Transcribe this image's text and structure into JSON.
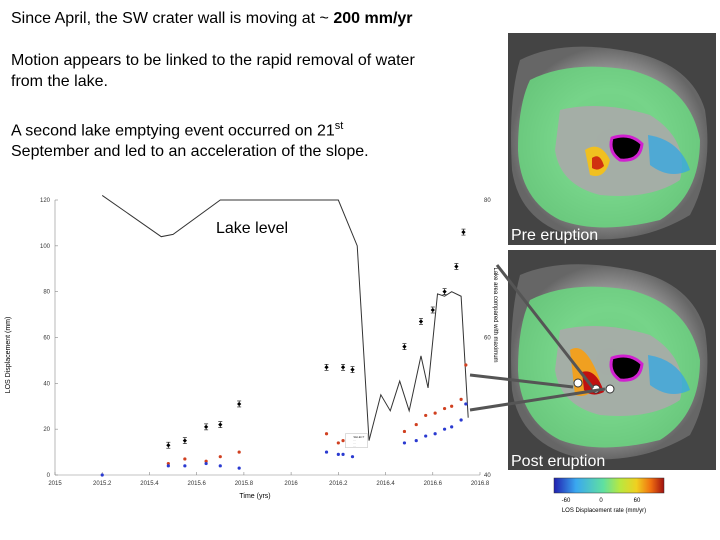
{
  "text": {
    "line1_pre": "Since April, the SW crater wall is moving at ~ ",
    "line1_bold": "200 mm/yr",
    "line2a": "Motion appears to be linked to the rapid removal of water",
    "line2b": "from the lake.",
    "line3a_pre": "A second lake emptying event occurred on 21",
    "line3a_sup": "st",
    "line3b": "September and led to an acceleration of the slope."
  },
  "labels": {
    "lake_level": "Lake level",
    "pre": "Pre eruption",
    "post": "Post eruption"
  },
  "colorbar": {
    "ticks": [
      "-60",
      "0",
      "60"
    ],
    "label": "LOS Displacement rate (mm/yr)"
  },
  "chart_data": {
    "type": "scatter",
    "xlabel": "Time (yrs)",
    "ylabel": "LOS Displacement (mm)",
    "y2label": "Lake area compared with maximum",
    "xlim": [
      2015,
      2016.8
    ],
    "ylim": [
      0,
      120
    ],
    "y2lim": [
      40,
      80
    ],
    "x_ticks": [
      "2015",
      "2015.2",
      "2015.4",
      "2015.6",
      "2015.8",
      "2016",
      "2016.2",
      "2016.4",
      "2016.6",
      "2016.8"
    ],
    "y_ticks": [
      "0",
      "20",
      "40",
      "60",
      "80",
      "100",
      "120"
    ],
    "y2_ticks": [
      "40",
      "60",
      "80"
    ],
    "legend": [
      "SELECT",
      "...",
      "...",
      "..."
    ],
    "series": [
      {
        "color": "#000000",
        "marker": "diamond-errorbar",
        "x": [
          2015.48,
          2015.55,
          2015.64,
          2015.7,
          2015.78,
          2016.15,
          2016.22,
          2016.26,
          2016.48,
          2016.55,
          2016.6,
          2016.65,
          2016.7,
          2016.73
        ],
        "y": [
          13,
          15,
          21,
          22,
          31,
          47,
          47,
          46,
          56,
          67,
          72,
          80,
          91,
          106
        ]
      },
      {
        "color": "#d04020",
        "marker": "dot",
        "x": [
          2015.48,
          2015.55,
          2015.64,
          2015.7,
          2015.78,
          2016.15,
          2016.2,
          2016.22,
          2016.26,
          2016.48,
          2016.53,
          2016.57,
          2016.61,
          2016.65,
          2016.68,
          2016.72,
          2016.74
        ],
        "y": [
          5,
          7,
          6,
          8,
          10,
          18,
          14,
          15,
          15,
          19,
          22,
          26,
          27,
          29,
          30,
          33,
          48
        ]
      },
      {
        "color": "#2a3ad0",
        "marker": "dot",
        "x": [
          2015.2,
          2015.48,
          2015.55,
          2015.64,
          2015.7,
          2015.78,
          2016.15,
          2016.2,
          2016.22,
          2016.26,
          2016.48,
          2016.53,
          2016.57,
          2016.61,
          2016.65,
          2016.68,
          2016.72,
          2016.74
        ],
        "y": [
          0,
          4,
          4,
          5,
          4,
          3,
          10,
          9,
          9,
          8,
          14,
          15,
          17,
          18,
          20,
          21,
          24,
          31
        ]
      }
    ],
    "lake_level": {
      "x": [
        2015.2,
        2015.45,
        2015.5,
        2015.7,
        2016.0,
        2016.2,
        2016.28,
        2016.33,
        2016.38,
        2016.42,
        2016.46,
        2016.5,
        2016.55,
        2016.58,
        2016.62,
        2016.65,
        2016.68,
        2016.72,
        2016.75
      ],
      "y": [
        122,
        104,
        105,
        120,
        120,
        120,
        100,
        15,
        35,
        28,
        41,
        28,
        52,
        38,
        79,
        78,
        80,
        78,
        25
      ]
    }
  }
}
